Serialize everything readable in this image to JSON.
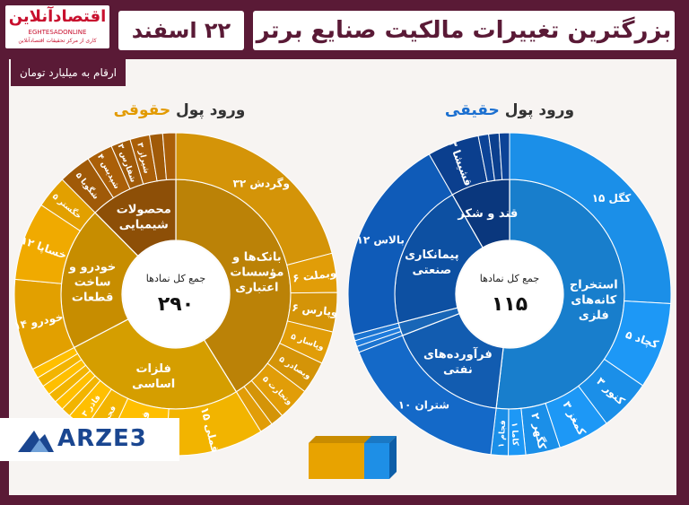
{
  "header": {
    "title": "بزرگترین تغییرات مالکیت صنایع برتر",
    "date": "۲۲ اسفند",
    "unit_note": "ارقام به میلیارد تومان"
  },
  "logo": {
    "name": "اقتصادآنلاین",
    "site": "EGHTESADONLINE",
    "note": "کاری از مرکز تحقیقات اقتصادآنلاین"
  },
  "watermark": "ARZE3",
  "colors": {
    "real": "#1e8fe6",
    "legal": "#e8a300"
  },
  "chart_data": [
    {
      "type": "sunburst",
      "title": "ورود پول حقیقی",
      "title_prefix": "ورود پول",
      "title_emph": "حقیقی",
      "center_label": "جمع کل نمادها",
      "total_label": "۱۱۵",
      "total": 115,
      "sectors": [
        {
          "name": "استخراج کانه‌های فلزی",
          "color": "#1b8fe8",
          "children": [
            {
              "name": "کگل ۱۵",
              "value": 15
            },
            {
              "name": "کچاد ۵",
              "value": 5
            },
            {
              "name": "کنور ۳",
              "value": 3
            },
            {
              "name": "کمغز ۳",
              "value": 3
            },
            {
              "name": "کگهر ۲",
              "value": 2
            },
            {
              "name": "کاما ۱",
              "value": 1
            },
            {
              "name": "فجام ۱",
              "value": 1
            }
          ]
        },
        {
          "name": "فرآورده‌های نفتی",
          "color": "#1469c8",
          "children": [
            {
              "name": "شتران ۱۰",
              "value": 10
            }
          ]
        },
        {
          "name": "",
          "color": "#1c74d0",
          "children": [
            {
              "name": "",
              "value": 0.35
            },
            {
              "name": "",
              "value": 0.35
            },
            {
              "name": "",
              "value": 0.35
            }
          ]
        },
        {
          "name": "پیمانکاری صنعتی",
          "color": "#0f5bb8",
          "children": [
            {
              "name": "بالاس ۱۲",
              "value": 12
            }
          ]
        },
        {
          "name": "قند و شکر",
          "color": "#0b3f8e",
          "children": [
            {
              "name": "قشیشا ۳",
              "value": 3
            },
            {
              "name": "",
              "value": 0.6
            },
            {
              "name": "",
              "value": 0.6
            },
            {
              "name": "",
              "value": 0.6
            }
          ]
        }
      ]
    },
    {
      "type": "sunburst",
      "title": "ورود پول حقوقی",
      "title_prefix": "ورود پول",
      "title_emph": "حقوقی",
      "center_label": "جمع کل نمادها",
      "total_label": "۲۹۰",
      "total": 290,
      "sectors": [
        {
          "name": "بانک‌ها و مؤسسات اعتباری",
          "color": "#d49408",
          "children": [
            {
              "name": "وگردش ۳۲",
              "value": 32
            },
            {
              "name": "وبملت ۶",
              "value": 6
            },
            {
              "name": "وپارس ۶",
              "value": 6
            },
            {
              "name": "وپاسار ۵",
              "value": 5
            },
            {
              "name": "وبصادر ۵",
              "value": 5
            },
            {
              "name": "وتجارت ۵",
              "value": 5
            },
            {
              "name": "",
              "value": 2
            },
            {
              "name": "",
              "value": 2
            }
          ]
        },
        {
          "name": "فلزات اساسی",
          "color": "#f2b400",
          "children": [
            {
              "name": "فملی ۱۵",
              "value": 15
            },
            {
              "name": "فخوز ۹",
              "value": 9
            },
            {
              "name": "فجر ۴",
              "value": 4
            },
            {
              "name": "فاذر ۳",
              "value": 3
            },
            {
              "name": "",
              "value": 1.5
            },
            {
              "name": "",
              "value": 1.5
            },
            {
              "name": "",
              "value": 1.5
            },
            {
              "name": "",
              "value": 1.5
            },
            {
              "name": "",
              "value": 1.5
            },
            {
              "name": "",
              "value": 1.5
            }
          ]
        },
        {
          "name": "خودرو و ساخت قطعات",
          "color": "#e2a000",
          "children": [
            {
              "name": "خودرو ۱۴",
              "value": 14
            },
            {
              "name": "خساپا ۱۲",
              "value": 12
            },
            {
              "name": "خگستر ۵",
              "value": 5
            }
          ]
        },
        {
          "name": "محصولات شیمیایی",
          "color": "#a05a08",
          "children": [
            {
              "name": "شگویا ۵",
              "value": 5
            },
            {
              "name": "شپدیس ۴",
              "value": 4
            },
            {
              "name": "شفارس ۳",
              "value": 3
            },
            {
              "name": "شیراز ۳",
              "value": 3
            },
            {
              "name": "",
              "value": 2
            },
            {
              "name": "",
              "value": 2
            }
          ]
        }
      ]
    }
  ]
}
